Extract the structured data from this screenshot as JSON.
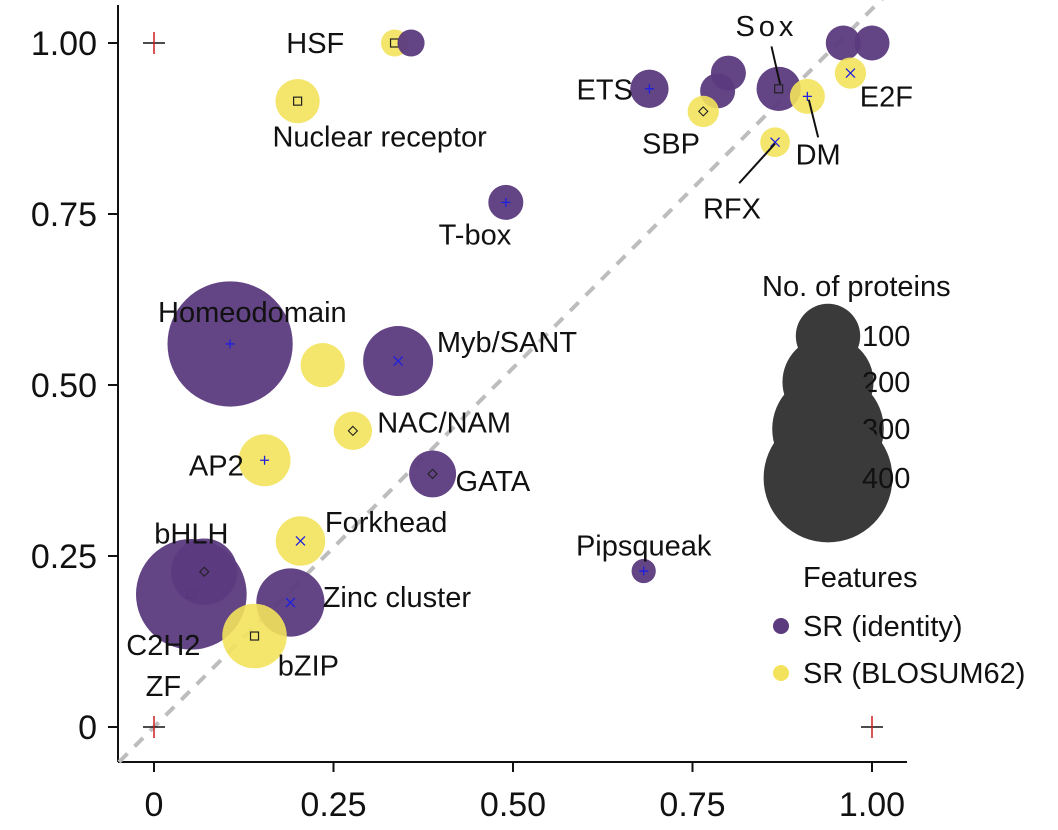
{
  "chart_data": {
    "type": "scatter",
    "xlim": [
      -0.05,
      1.05
    ],
    "ylim": [
      -0.05,
      1.05
    ],
    "x_ticks": [
      {
        "value": 0,
        "label": "0"
      },
      {
        "value": 0.25,
        "label": "0.25"
      },
      {
        "value": 0.5,
        "label": "0.50"
      },
      {
        "value": 0.75,
        "label": "0.75"
      },
      {
        "value": 1,
        "label": "1.00"
      }
    ],
    "y_ticks": [
      {
        "value": 0,
        "label": "0"
      },
      {
        "value": 0.25,
        "label": "0.25"
      },
      {
        "value": 0.5,
        "label": "0.50"
      },
      {
        "value": 0.75,
        "label": "0.75"
      },
      {
        "value": 1,
        "label": "1.00"
      }
    ],
    "diagonal": {
      "from": [
        0,
        0
      ],
      "to": [
        1,
        1
      ],
      "style": "dashed",
      "color": "#bdbdbd"
    },
    "reference_marks": [
      {
        "x": 0,
        "y": 1
      },
      {
        "x": 0,
        "y": 0
      },
      {
        "x": 1,
        "y": 0
      }
    ],
    "colors": {
      "identity": "#5b3a7e",
      "blosum": "#f3e35c",
      "marker": "#1f1fe0"
    },
    "points": [
      {
        "family": "HSF",
        "x": 0.335,
        "y": 1.0,
        "proteins": 15,
        "feature": "blosum",
        "marker": "square"
      },
      {
        "family": "HSF",
        "x": 0.358,
        "y": 1.0,
        "proteins": 15,
        "feature": "identity",
        "marker": ""
      },
      {
        "family": "Nuclear receptor",
        "x": 0.2,
        "y": 0.915,
        "proteins": 40,
        "feature": "blosum",
        "marker": "square"
      },
      {
        "family": "ETS",
        "x": 0.69,
        "y": 0.933,
        "proteins": 30,
        "feature": "identity",
        "marker": "plus"
      },
      {
        "family": "",
        "x": 0.785,
        "y": 0.93,
        "proteins": 25,
        "feature": "identity",
        "marker": ""
      },
      {
        "family": "",
        "x": 0.8,
        "y": 0.956,
        "proteins": 25,
        "feature": "identity",
        "marker": ""
      },
      {
        "family": "Sox",
        "x": 0.87,
        "y": 0.933,
        "proteins": 40,
        "feature": "identity",
        "marker": "square"
      },
      {
        "family": "",
        "x": 0.96,
        "y": 1.0,
        "proteins": 25,
        "feature": "identity",
        "marker": ""
      },
      {
        "family": "",
        "x": 1.0,
        "y": 1.0,
        "proteins": 25,
        "feature": "identity",
        "marker": ""
      },
      {
        "family": "SBP",
        "x": 0.765,
        "y": 0.9,
        "proteins": 20,
        "feature": "blosum",
        "marker": "diamond"
      },
      {
        "family": "DM",
        "x": 0.91,
        "y": 0.922,
        "proteins": 25,
        "feature": "blosum",
        "marker": "plus"
      },
      {
        "family": "E2F",
        "x": 0.97,
        "y": 0.956,
        "proteins": 20,
        "feature": "blosum",
        "marker": "cross"
      },
      {
        "family": "RFX",
        "x": 0.865,
        "y": 0.855,
        "proteins": 18,
        "feature": "blosum",
        "marker": "cross"
      },
      {
        "family": "T-box",
        "x": 0.49,
        "y": 0.767,
        "proteins": 25,
        "feature": "identity",
        "marker": "plus"
      },
      {
        "family": "Homeodomain",
        "x": 0.106,
        "y": 0.56,
        "proteins": 320,
        "feature": "identity",
        "marker": "plus"
      },
      {
        "family": "",
        "x": 0.235,
        "y": 0.529,
        "proteins": 40,
        "feature": "blosum",
        "marker": ""
      },
      {
        "family": "Myb/SANT",
        "x": 0.34,
        "y": 0.535,
        "proteins": 100,
        "feature": "identity",
        "marker": "cross"
      },
      {
        "family": "NAC/NAM",
        "x": 0.277,
        "y": 0.433,
        "proteins": 30,
        "feature": "blosum",
        "marker": "diamond"
      },
      {
        "family": "AP2",
        "x": 0.154,
        "y": 0.39,
        "proteins": 55,
        "feature": "blosum",
        "marker": "plus"
      },
      {
        "family": "GATA",
        "x": 0.388,
        "y": 0.37,
        "proteins": 45,
        "feature": "identity",
        "marker": "diamond"
      },
      {
        "family": "Forkhead",
        "x": 0.204,
        "y": 0.272,
        "proteins": 50,
        "feature": "blosum",
        "marker": "cross"
      },
      {
        "family": "Pipsqueak",
        "x": 0.682,
        "y": 0.228,
        "proteins": 12,
        "feature": "identity",
        "marker": "plus"
      },
      {
        "family": "bHLH",
        "x": 0.07,
        "y": 0.227,
        "proteins": 90,
        "feature": "identity",
        "marker": "diamond"
      },
      {
        "family": "C2H2 ZF",
        "x": 0.052,
        "y": 0.194,
        "proteins": 250,
        "feature": "identity",
        "marker": "square"
      },
      {
        "family": "Zinc cluster",
        "x": 0.19,
        "y": 0.182,
        "proteins": 95,
        "feature": "identity",
        "marker": "cross"
      },
      {
        "family": "bZIP",
        "x": 0.14,
        "y": 0.133,
        "proteins": 85,
        "feature": "blosum",
        "marker": "square"
      }
    ],
    "labels": [
      {
        "text": "HSF",
        "x": 0.265,
        "y": 1.0,
        "anchor": "end"
      },
      {
        "text": "Nuclear receptor",
        "x": 0.165,
        "y": 0.863,
        "anchor": "start"
      },
      {
        "text": "Sox",
        "x": 0.853,
        "y": 1.025,
        "anchor": "middle",
        "letter_spacing": 4
      },
      {
        "text": "ETS",
        "x": 0.667,
        "y": 0.932,
        "anchor": "end"
      },
      {
        "text": "E2F",
        "x": 0.983,
        "y": 0.922,
        "anchor": "start"
      },
      {
        "text": "SBP",
        "x": 0.72,
        "y": 0.853,
        "anchor": "middle"
      },
      {
        "text": "DM",
        "x": 0.925,
        "y": 0.837,
        "anchor": "middle"
      },
      {
        "text": "RFX",
        "x": 0.805,
        "y": 0.758,
        "anchor": "middle"
      },
      {
        "text": "T-box",
        "x": 0.447,
        "y": 0.72,
        "anchor": "middle"
      },
      {
        "text": "Homeodomain",
        "x": 0.137,
        "y": 0.607,
        "anchor": "middle"
      },
      {
        "text": "Myb/SANT",
        "x": 0.394,
        "y": 0.563,
        "anchor": "start"
      },
      {
        "text": "NAC/NAM",
        "x": 0.311,
        "y": 0.445,
        "anchor": "start"
      },
      {
        "text": "AP2",
        "x": 0.125,
        "y": 0.382,
        "anchor": "end"
      },
      {
        "text": "GATA",
        "x": 0.42,
        "y": 0.36,
        "anchor": "start"
      },
      {
        "text": "Forkhead",
        "x": 0.238,
        "y": 0.3,
        "anchor": "start"
      },
      {
        "text": "Pipsqueak",
        "x": 0.682,
        "y": 0.265,
        "anchor": "middle"
      },
      {
        "text": "bHLH",
        "x": 0.052,
        "y": 0.283,
        "anchor": "middle"
      },
      {
        "text": "Zinc cluster",
        "x": 0.235,
        "y": 0.19,
        "anchor": "start"
      },
      {
        "text": "C2H2",
        "x": 0.013,
        "y": 0.12,
        "anchor": "middle"
      },
      {
        "text": "ZF",
        "x": 0.013,
        "y": 0.06,
        "anchor": "middle"
      },
      {
        "text": "bZIP",
        "x": 0.215,
        "y": 0.09,
        "anchor": "middle"
      }
    ],
    "leader_lines": [
      {
        "from": [
          0.86,
          0.995
        ],
        "to": [
          0.872,
          0.94
        ]
      },
      {
        "from": [
          0.912,
          0.917
        ],
        "to": [
          0.925,
          0.862
        ]
      },
      {
        "from": [
          0.865,
          0.853
        ],
        "to": [
          0.815,
          0.795
        ]
      }
    ],
    "legend": {
      "position": "right",
      "size_title": "No. of proteins",
      "size_items": [
        {
          "value": 100,
          "label": "100"
        },
        {
          "value": 200,
          "label": "200"
        },
        {
          "value": 300,
          "label": "300"
        },
        {
          "value": 400,
          "label": "400"
        }
      ],
      "feature_title": "Features",
      "feature_items": [
        {
          "key": "identity",
          "label": "SR (identity)"
        },
        {
          "key": "blosum",
          "label": "SR (BLOSUM62)"
        }
      ]
    }
  }
}
